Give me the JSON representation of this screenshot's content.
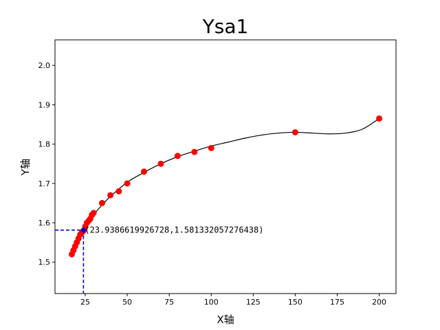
{
  "chart_data": {
    "type": "scatter",
    "title": "Ysa1",
    "xlabel": "X轴",
    "ylabel": "Y轴",
    "xlim": [
      7,
      210
    ],
    "ylim": [
      1.42,
      2.065
    ],
    "xticks": [
      25,
      50,
      75,
      100,
      125,
      150,
      175,
      200
    ],
    "yticks": [
      1.5,
      1.6,
      1.7,
      1.8,
      1.9,
      2.0
    ],
    "grid": false,
    "marker_color": "#ff0000",
    "curve_color": "#000000",
    "highlight_color": "#0000cc",
    "points": {
      "x": [
        17,
        18,
        19,
        20,
        21,
        22,
        23,
        24,
        25,
        26,
        27,
        28,
        29,
        30,
        35,
        40,
        45,
        50,
        60,
        70,
        80,
        90,
        100,
        150,
        200
      ],
      "y": [
        1.52,
        1.53,
        1.54,
        1.55,
        1.56,
        1.57,
        1.575,
        1.58,
        1.59,
        1.6,
        1.605,
        1.61,
        1.62,
        1.625,
        1.65,
        1.67,
        1.68,
        1.7,
        1.73,
        1.75,
        1.77,
        1.78,
        1.79,
        1.83,
        1.865
      ]
    },
    "fit_curve": {
      "x": [
        17,
        20,
        25,
        30,
        35,
        40,
        50,
        60,
        70,
        80,
        90,
        100,
        110,
        120,
        130,
        140,
        150,
        160,
        170,
        180,
        190,
        200
      ],
      "y": [
        1.518,
        1.545,
        1.588,
        1.62,
        1.645,
        1.667,
        1.703,
        1.728,
        1.75,
        1.768,
        1.782,
        1.795,
        1.805,
        1.815,
        1.823,
        1.828,
        1.83,
        1.828,
        1.826,
        1.828,
        1.838,
        1.865
      ]
    },
    "highlight": {
      "x": 23.9386619926728,
      "y": 1.581332057276438,
      "label": "(23.9386619926728,1.581332057276438)"
    }
  }
}
